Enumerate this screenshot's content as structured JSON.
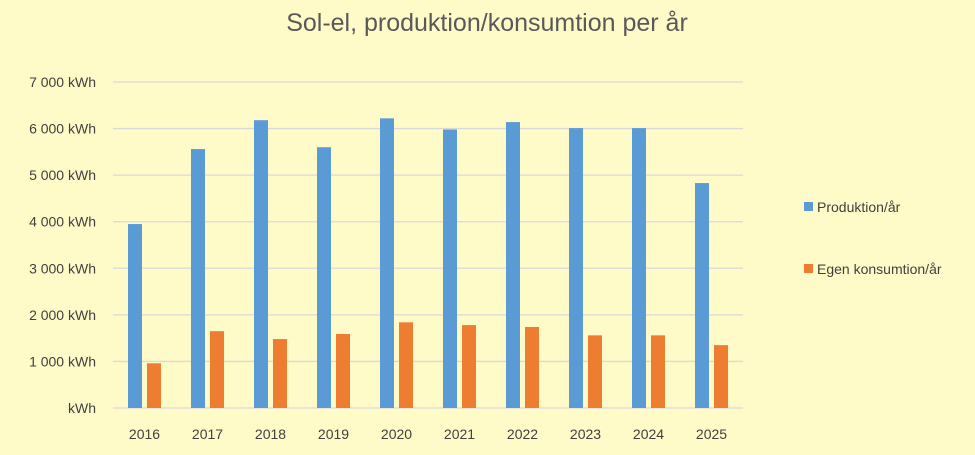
{
  "chart_data": {
    "type": "bar",
    "title": "Sol-el, produktion/konsumtion per år",
    "xlabel": "",
    "ylabel": "",
    "unit": "kWh",
    "categories": [
      "2016",
      "2017",
      "2018",
      "2019",
      "2020",
      "2021",
      "2022",
      "2023",
      "2024",
      "2025"
    ],
    "ylim": [
      0,
      7000
    ],
    "yticks": [
      0,
      1000,
      2000,
      3000,
      4000,
      5000,
      6000,
      7000
    ],
    "ytick_labels": [
      "kWh",
      "1 000  kWh",
      "2 000  kWh",
      "3 000  kWh",
      "4 000  kWh",
      "5 000  kWh",
      "6 000  kWh",
      "7 000  kWh"
    ],
    "grid": true,
    "legend_position": "right",
    "series": [
      {
        "name": "Produktion/år",
        "color": "#5B9BD5",
        "values": [
          3950,
          5560,
          6180,
          5600,
          6220,
          5980,
          6140,
          6010,
          6010,
          4830
        ]
      },
      {
        "name": "Egen konsumtion/år",
        "color": "#ED7D31",
        "values": [
          960,
          1650,
          1480,
          1590,
          1840,
          1780,
          1740,
          1560,
          1560,
          1350
        ]
      }
    ]
  }
}
